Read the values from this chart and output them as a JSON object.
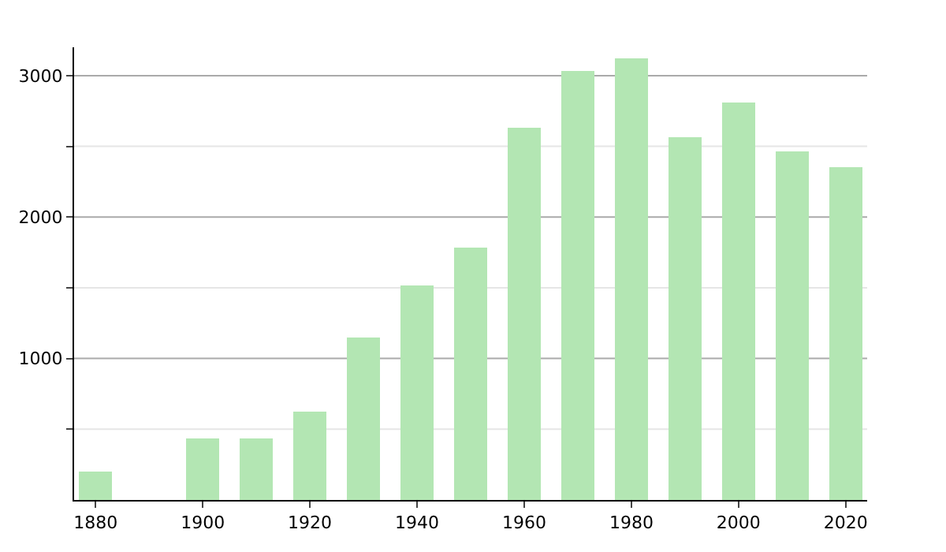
{
  "chart_data": {
    "type": "bar",
    "x": [
      1880,
      1900,
      1910,
      1920,
      1930,
      1940,
      1950,
      1960,
      1970,
      1980,
      1990,
      2000,
      2010,
      2020
    ],
    "values": [
      200,
      430,
      430,
      620,
      1150,
      1520,
      1780,
      2630,
      3030,
      3120,
      2560,
      2810,
      2460,
      2350
    ],
    "color": "#b3e6b3",
    "xlim": [
      1876,
      2024
    ],
    "xticks": [
      1880,
      1900,
      1920,
      1940,
      1960,
      1980,
      2000,
      2020
    ],
    "ylim": [
      0,
      3200
    ],
    "yticks": [
      {
        "value": 500,
        "label": null
      },
      1000,
      {
        "value": 1500,
        "label": null
      },
      2000,
      {
        "value": 2500,
        "label": null
      },
      3000
    ],
    "grid": "y"
  }
}
